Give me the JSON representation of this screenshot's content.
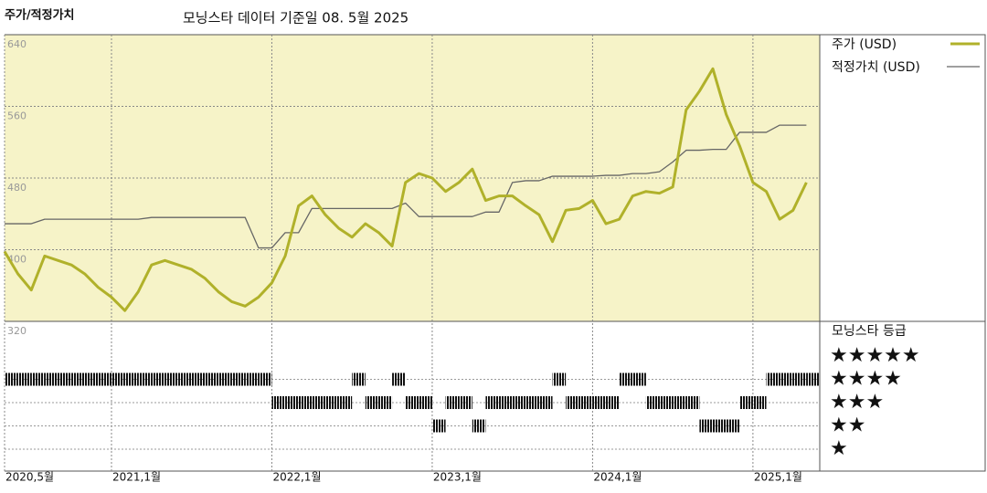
{
  "chart_data": [
    {
      "type": "line",
      "title": "주가/적정가치",
      "subtitle": "모닝스타 데이터 기준일 08. 5월 2025",
      "x": [
        "2020-05",
        "2020-06",
        "2020-07",
        "2020-08",
        "2020-09",
        "2020-10",
        "2020-11",
        "2020-12",
        "2021-01",
        "2021-02",
        "2021-03",
        "2021-04",
        "2021-05",
        "2021-06",
        "2021-07",
        "2021-08",
        "2021-09",
        "2021-10",
        "2021-11",
        "2021-12",
        "2022-01",
        "2022-02",
        "2022-03",
        "2022-04",
        "2022-05",
        "2022-06",
        "2022-07",
        "2022-08",
        "2022-09",
        "2022-10",
        "2022-11",
        "2022-12",
        "2023-01",
        "2023-02",
        "2023-03",
        "2023-04",
        "2023-05",
        "2023-06",
        "2023-07",
        "2023-08",
        "2023-09",
        "2023-10",
        "2023-11",
        "2023-12",
        "2024-01",
        "2024-02",
        "2024-03",
        "2024-04",
        "2024-05",
        "2024-06",
        "2024-07",
        "2024-08",
        "2024-09",
        "2024-10",
        "2024-11",
        "2024-12",
        "2025-01",
        "2025-02",
        "2025-03",
        "2025-04",
        "2025-05"
      ],
      "xlim": [
        "2020-05",
        "2025-06"
      ],
      "xticks": [
        {
          "value": "2020-05",
          "label": "2020,5월"
        },
        {
          "value": "2021-01",
          "label": "2021,1월"
        },
        {
          "value": "2022-01",
          "label": "2022,1월"
        },
        {
          "value": "2023-01",
          "label": "2023,1월"
        },
        {
          "value": "2024-01",
          "label": "2024,1월"
        },
        {
          "value": "2025-01",
          "label": "2025,1월"
        }
      ],
      "ylim": [
        320,
        640
      ],
      "yticks": [
        320,
        400,
        480,
        560,
        640
      ],
      "grid": true,
      "series": [
        {
          "name": "주가 (USD)",
          "color": "#b0b12a",
          "values": [
            398,
            373,
            355,
            393,
            388,
            383,
            373,
            358,
            347,
            332,
            353,
            383,
            388,
            383,
            378,
            368,
            353,
            342,
            337,
            347,
            363,
            393,
            449,
            460,
            439,
            424,
            414,
            429,
            419,
            404,
            475,
            485,
            480,
            465,
            475,
            490,
            455,
            460,
            460,
            449,
            439,
            409,
            444,
            446,
            455,
            429,
            434,
            460,
            465,
            463,
            470,
            556,
            577,
            602,
            551,
            516,
            475,
            465,
            434,
            444,
            475
          ]
        },
        {
          "name": "적정가치 (USD)",
          "color": "#666666",
          "values": [
            429,
            429,
            429,
            434,
            434,
            434,
            434,
            434,
            434,
            434,
            434,
            436,
            436,
            436,
            436,
            436,
            436,
            436,
            436,
            402,
            402,
            419,
            419,
            446,
            446,
            446,
            446,
            446,
            446,
            446,
            452,
            437,
            437,
            437,
            437,
            437,
            442,
            442,
            475,
            477,
            477,
            482,
            482,
            482,
            482,
            483,
            483,
            485,
            485,
            487,
            498,
            511,
            511,
            512,
            512,
            531,
            531,
            531,
            539,
            539,
            539
          ]
        }
      ]
    },
    {
      "type": "rating",
      "title": "모닝스타 등급",
      "labels": [
        "★★★★★",
        "★★★★",
        "★★★",
        "★★",
        "★"
      ],
      "x": [
        "2020-05",
        "2020-06",
        "2020-07",
        "2020-08",
        "2020-09",
        "2020-10",
        "2020-11",
        "2020-12",
        "2021-01",
        "2021-02",
        "2021-03",
        "2021-04",
        "2021-05",
        "2021-06",
        "2021-07",
        "2021-08",
        "2021-09",
        "2021-10",
        "2021-11",
        "2021-12",
        "2022-01",
        "2022-02",
        "2022-03",
        "2022-04",
        "2022-05",
        "2022-06",
        "2022-07",
        "2022-08",
        "2022-09",
        "2022-10",
        "2022-11",
        "2022-12",
        "2023-01",
        "2023-02",
        "2023-03",
        "2023-04",
        "2023-05",
        "2023-06",
        "2023-07",
        "2023-08",
        "2023-09",
        "2023-10",
        "2023-11",
        "2023-12",
        "2024-01",
        "2024-02",
        "2024-03",
        "2024-04",
        "2024-05",
        "2024-06",
        "2024-07",
        "2024-08",
        "2024-09",
        "2024-10",
        "2024-11",
        "2024-12",
        "2025-01",
        "2025-02",
        "2025-03",
        "2025-04",
        "2025-05"
      ],
      "values": [
        4,
        4,
        4,
        4,
        4,
        4,
        4,
        4,
        4,
        4,
        4,
        4,
        4,
        4,
        4,
        4,
        4,
        4,
        4,
        4,
        3,
        3,
        3,
        3,
        3,
        3,
        4,
        3,
        3,
        4,
        3,
        3,
        2,
        3,
        3,
        2,
        3,
        3,
        3,
        3,
        3,
        4,
        3,
        3,
        3,
        3,
        4,
        4,
        3,
        3,
        3,
        3,
        2,
        2,
        2,
        3,
        3,
        4,
        4,
        4,
        4
      ]
    }
  ]
}
